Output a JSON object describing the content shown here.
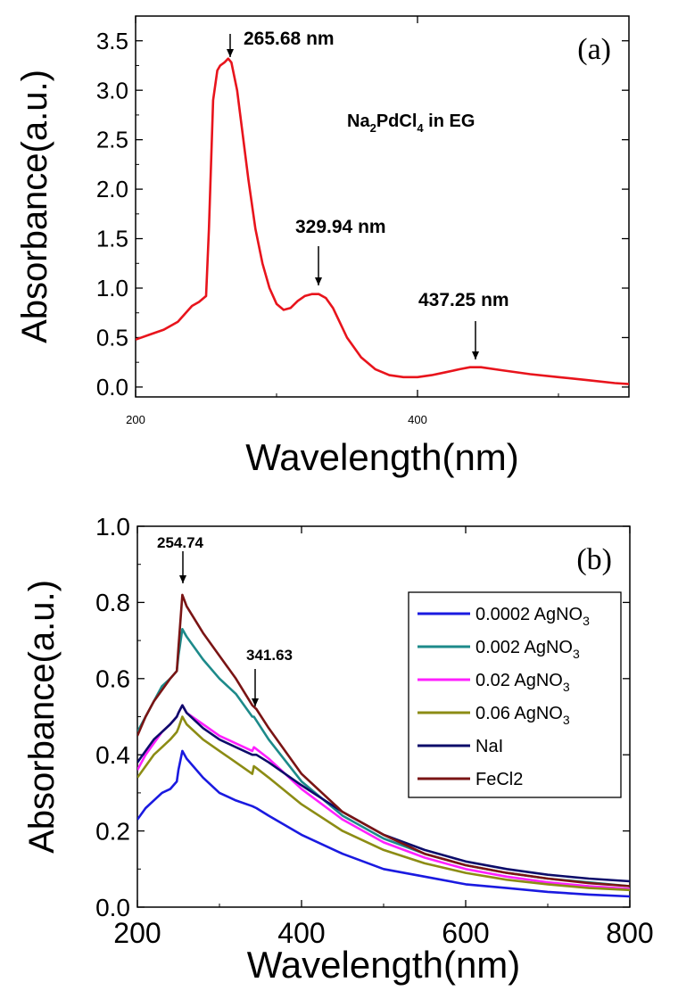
{
  "chart_data": [
    {
      "type": "line",
      "panel_label": "(a)",
      "xlabel": "Wavelength(nm)",
      "ylabel": "Absorbance(a.u.)",
      "xlim": [
        200,
        550
      ],
      "ylim": [
        -0.1,
        3.75
      ],
      "x_ticks": [
        200,
        400
      ],
      "y_ticks": [
        0.0,
        0.5,
        1.0,
        1.5,
        2.0,
        2.5,
        3.0,
        3.5
      ],
      "y_tick_labels": [
        "0.0",
        "0.5",
        "1.0",
        "1.5",
        "2.0",
        "2.5",
        "3.0",
        "3.5"
      ],
      "grid": false,
      "series": [
        {
          "color": "#e8141c",
          "x": [
            200,
            210,
            220,
            230,
            240,
            245,
            250,
            252,
            255,
            258,
            260,
            263,
            265.68,
            268,
            272,
            276,
            280,
            285,
            290,
            295,
            300,
            305,
            310,
            315,
            320,
            325,
            329.94,
            335,
            340,
            345,
            350,
            360,
            370,
            380,
            390,
            400,
            410,
            420,
            430,
            437.25,
            445,
            460,
            480,
            500,
            520,
            540,
            550
          ],
          "y": [
            0.48,
            0.53,
            0.58,
            0.66,
            0.82,
            0.86,
            0.92,
            1.6,
            2.9,
            3.2,
            3.25,
            3.28,
            3.32,
            3.28,
            3.0,
            2.55,
            2.1,
            1.6,
            1.25,
            1.0,
            0.84,
            0.78,
            0.8,
            0.87,
            0.92,
            0.94,
            0.94,
            0.9,
            0.8,
            0.65,
            0.5,
            0.3,
            0.18,
            0.12,
            0.1,
            0.1,
            0.12,
            0.15,
            0.18,
            0.2,
            0.2,
            0.17,
            0.13,
            0.1,
            0.07,
            0.04,
            0.03
          ]
        }
      ],
      "annotations": [
        {
          "text": "265.68 nm",
          "x": 265.68,
          "y": 3.32
        },
        {
          "text": "329.94 nm",
          "x": 329.94,
          "y": 0.94
        },
        {
          "text": "437.25 nm",
          "x": 437.25,
          "y": 0.2
        }
      ],
      "inset_label": {
        "main": "Na",
        "sub1": "2",
        "mid": "PdCl",
        "sub2": "4",
        "tail": " in EG"
      }
    },
    {
      "type": "line",
      "panel_label": "(b)",
      "xlabel": "Wavelength(nm)",
      "ylabel": "Absorbance(a.u.)",
      "xlim": [
        200,
        800
      ],
      "ylim": [
        0.0,
        1.0
      ],
      "x_ticks": [
        200,
        400,
        600,
        800
      ],
      "y_ticks": [
        0.0,
        0.2,
        0.4,
        0.6,
        0.8,
        1.0
      ],
      "y_tick_labels": [
        "0.0",
        "0.2",
        "0.4",
        "0.6",
        "0.8",
        "1.0"
      ],
      "grid": false,
      "legend_position": "right",
      "annotations": [
        {
          "text": "254.74",
          "x": 254.74,
          "y": 0.82
        },
        {
          "text": "341.63",
          "x": 341.63,
          "y": 0.52
        }
      ],
      "series": [
        {
          "name": "0.0002 AgNO",
          "sub": "3",
          "color": "#1a1ae0",
          "x": [
            200,
            210,
            220,
            230,
            240,
            248,
            250,
            254.74,
            260,
            280,
            300,
            320,
            340,
            345,
            360,
            400,
            450,
            500,
            550,
            600,
            650,
            700,
            750,
            800
          ],
          "y": [
            0.23,
            0.26,
            0.28,
            0.3,
            0.31,
            0.33,
            0.36,
            0.41,
            0.39,
            0.34,
            0.3,
            0.28,
            0.265,
            0.26,
            0.24,
            0.19,
            0.14,
            0.1,
            0.08,
            0.06,
            0.05,
            0.04,
            0.033,
            0.028
          ]
        },
        {
          "name": "0.002 AgNO",
          "sub": "3",
          "color": "#1d8a8a",
          "x": [
            200,
            210,
            220,
            230,
            240,
            248,
            250,
            254.74,
            260,
            280,
            300,
            320,
            340,
            342,
            345,
            360,
            400,
            450,
            500,
            550,
            600,
            650,
            700,
            750,
            800
          ],
          "y": [
            0.46,
            0.5,
            0.54,
            0.58,
            0.6,
            0.62,
            0.66,
            0.73,
            0.71,
            0.65,
            0.6,
            0.56,
            0.5,
            0.5,
            0.49,
            0.44,
            0.33,
            0.24,
            0.18,
            0.14,
            0.11,
            0.09,
            0.075,
            0.065,
            0.055
          ]
        },
        {
          "name": "0.02 AgNO",
          "sub": "3",
          "color": "#ff20ff",
          "x": [
            200,
            210,
            220,
            230,
            240,
            248,
            250,
            254.74,
            260,
            280,
            300,
            320,
            340,
            342,
            345,
            360,
            400,
            450,
            500,
            550,
            600,
            650,
            700,
            750,
            800
          ],
          "y": [
            0.36,
            0.4,
            0.43,
            0.46,
            0.48,
            0.5,
            0.51,
            0.53,
            0.51,
            0.48,
            0.45,
            0.43,
            0.41,
            0.42,
            0.415,
            0.39,
            0.31,
            0.23,
            0.17,
            0.13,
            0.1,
            0.08,
            0.065,
            0.055,
            0.048
          ]
        },
        {
          "name": "0.06 AgNO",
          "sub": "3",
          "color": "#8c8c14",
          "x": [
            200,
            210,
            220,
            230,
            240,
            248,
            250,
            254.74,
            260,
            280,
            300,
            320,
            340,
            342,
            345,
            360,
            400,
            450,
            500,
            550,
            600,
            650,
            700,
            750,
            800
          ],
          "y": [
            0.34,
            0.37,
            0.4,
            0.42,
            0.44,
            0.46,
            0.47,
            0.5,
            0.48,
            0.44,
            0.41,
            0.38,
            0.35,
            0.37,
            0.365,
            0.34,
            0.27,
            0.2,
            0.15,
            0.115,
            0.09,
            0.072,
            0.06,
            0.05,
            0.045
          ]
        },
        {
          "name": "NaI",
          "color": "#0c0c6a",
          "x": [
            200,
            210,
            220,
            230,
            240,
            248,
            250,
            254.74,
            260,
            280,
            300,
            320,
            340,
            345,
            360,
            400,
            450,
            500,
            550,
            600,
            650,
            700,
            750,
            800
          ],
          "y": [
            0.38,
            0.41,
            0.44,
            0.46,
            0.48,
            0.5,
            0.51,
            0.53,
            0.51,
            0.47,
            0.44,
            0.42,
            0.4,
            0.4,
            0.38,
            0.32,
            0.25,
            0.19,
            0.15,
            0.12,
            0.1,
            0.085,
            0.075,
            0.068
          ]
        },
        {
          "name": "FeCl2",
          "color": "#7a1414",
          "x": [
            200,
            210,
            220,
            230,
            240,
            248,
            250,
            254.74,
            260,
            280,
            300,
            320,
            340,
            345,
            360,
            400,
            450,
            500,
            550,
            600,
            650,
            700,
            750,
            800
          ],
          "y": [
            0.45,
            0.5,
            0.54,
            0.57,
            0.6,
            0.62,
            0.68,
            0.82,
            0.79,
            0.72,
            0.66,
            0.6,
            0.53,
            0.52,
            0.47,
            0.35,
            0.25,
            0.19,
            0.14,
            0.11,
            0.09,
            0.075,
            0.063,
            0.055
          ]
        }
      ]
    }
  ]
}
